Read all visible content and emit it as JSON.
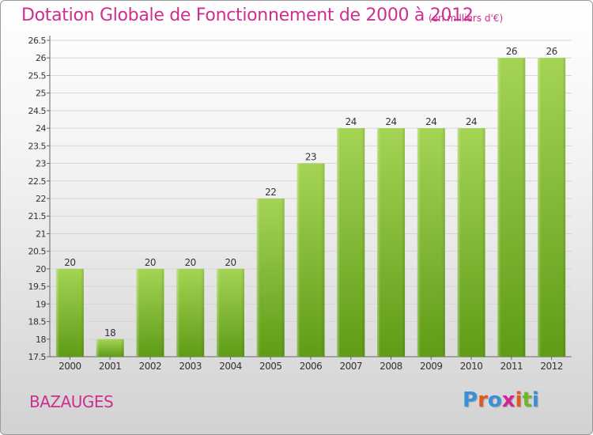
{
  "header": {
    "title": "Dotation Globale de Fonctionnement de 2000 à 2012",
    "unit": "(en milliers d'€)"
  },
  "footer": {
    "commune": "BAZAUGES",
    "logo_letters": [
      "P",
      "r",
      "o",
      "x",
      "i",
      "t",
      "i"
    ],
    "logo_colors": [
      "#3a8fd6",
      "#e05a1f",
      "#3a8fd6",
      "#d0259a",
      "#e05a1f",
      "#71b52a",
      "#3a8fd6"
    ]
  },
  "chart_data": {
    "type": "bar",
    "title": "Dotation Globale de Fonctionnement de 2000 à 2012",
    "xlabel": "",
    "ylabel": "",
    "categories": [
      "2000",
      "2001",
      "2002",
      "2003",
      "2004",
      "2005",
      "2006",
      "2007",
      "2008",
      "2009",
      "2010",
      "2011",
      "2012"
    ],
    "values": [
      20,
      18,
      20,
      20,
      20,
      22,
      23,
      24,
      24,
      24,
      24,
      26,
      26
    ],
    "value_labels": [
      "20",
      "18",
      "20",
      "20",
      "20",
      "22",
      "23",
      "24",
      "24",
      "24",
      "24",
      "26",
      "26"
    ],
    "ylim": [
      17.5,
      26.5
    ],
    "yticks": [
      "17.5",
      "18",
      "18.5",
      "19",
      "19.5",
      "20",
      "20.5",
      "21",
      "21.5",
      "22",
      "22.5",
      "23",
      "23.5",
      "24",
      "24.5",
      "25",
      "25.5",
      "26",
      "26.5"
    ],
    "grid": true,
    "legend": "none",
    "bar_color_top": "#a5d455",
    "bar_color_bottom": "#5f9c16"
  }
}
